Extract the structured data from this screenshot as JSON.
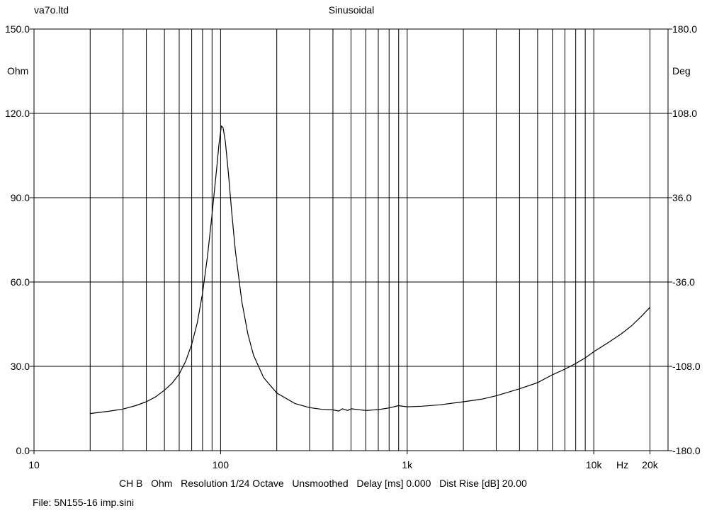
{
  "header": {
    "left": "va7o.ltd",
    "title": "Sinusoidal"
  },
  "footer": {
    "info": "CH B   Ohm   Resolution 1/24 Octave   Unsmoothed   Delay [ms] 0.000   Dist Rise [dB] 20.00",
    "file": "File: 5N155-16 imp.sini"
  },
  "chart_data": {
    "type": "line",
    "xscale": "log",
    "xlim": [
      10,
      25000
    ],
    "ylim": [
      0,
      150
    ],
    "y2lim": [
      -180,
      180
    ],
    "grid": true,
    "ylabel": "Ohm",
    "y2label": "Deg",
    "xunit": "Hz",
    "x_ticks": [
      {
        "value": 10,
        "label": "10"
      },
      {
        "value": 100,
        "label": "100"
      },
      {
        "value": 1000,
        "label": "1k"
      },
      {
        "value": 10000,
        "label": "10k"
      },
      {
        "value": 20000,
        "label": "20k"
      }
    ],
    "y_ticks": [
      {
        "value": 150,
        "label": "150.0"
      },
      {
        "value": 120,
        "label": "120.0"
      },
      {
        "value": 90,
        "label": "90.0"
      },
      {
        "value": 60,
        "label": "60.0"
      },
      {
        "value": 30,
        "label": "30.0"
      },
      {
        "value": 0,
        "label": "0.0"
      }
    ],
    "y2_ticks": [
      {
        "value": 180,
        "label": "180.0"
      },
      {
        "value": 108,
        "label": "108.0"
      },
      {
        "value": 36,
        "label": "36.0"
      },
      {
        "value": -36,
        "label": "-36.0"
      },
      {
        "value": -108,
        "label": "-108.0"
      },
      {
        "value": -180,
        "label": "-180.0"
      }
    ],
    "series": [
      {
        "color": "#000000",
        "points": [
          [
            20,
            13.2
          ],
          [
            25,
            14.0
          ],
          [
            30,
            14.8
          ],
          [
            35,
            16.0
          ],
          [
            40,
            17.4
          ],
          [
            45,
            19.2
          ],
          [
            50,
            21.5
          ],
          [
            55,
            24.0
          ],
          [
            60,
            27.3
          ],
          [
            65,
            31.8
          ],
          [
            70,
            37.8
          ],
          [
            75,
            45.5
          ],
          [
            80,
            56.0
          ],
          [
            85,
            69.0
          ],
          [
            90,
            84.0
          ],
          [
            95,
            99.5
          ],
          [
            98,
            109.0
          ],
          [
            101,
            115.5
          ],
          [
            103,
            115.0
          ],
          [
            106,
            110.0
          ],
          [
            110,
            99.0
          ],
          [
            115,
            84.0
          ],
          [
            120,
            71.0
          ],
          [
            130,
            53.0
          ],
          [
            140,
            41.5
          ],
          [
            150,
            34.0
          ],
          [
            170,
            26.0
          ],
          [
            200,
            20.5
          ],
          [
            250,
            16.8
          ],
          [
            300,
            15.3
          ],
          [
            350,
            14.7
          ],
          [
            400,
            14.5
          ],
          [
            430,
            14.1
          ],
          [
            450,
            14.9
          ],
          [
            480,
            14.3
          ],
          [
            500,
            14.9
          ],
          [
            600,
            14.3
          ],
          [
            700,
            14.6
          ],
          [
            800,
            15.2
          ],
          [
            900,
            16.0
          ],
          [
            1000,
            15.6
          ],
          [
            1200,
            15.8
          ],
          [
            1500,
            16.3
          ],
          [
            2000,
            17.4
          ],
          [
            2500,
            18.3
          ],
          [
            3000,
            19.5
          ],
          [
            4000,
            22.0
          ],
          [
            5000,
            24.2
          ],
          [
            6000,
            27.0
          ],
          [
            7000,
            29.0
          ],
          [
            8000,
            31.0
          ],
          [
            9000,
            33.0
          ],
          [
            10000,
            35.2
          ],
          [
            12000,
            38.5
          ],
          [
            14000,
            41.5
          ],
          [
            16000,
            44.5
          ],
          [
            18000,
            47.8
          ],
          [
            20000,
            51.0
          ]
        ]
      }
    ]
  }
}
